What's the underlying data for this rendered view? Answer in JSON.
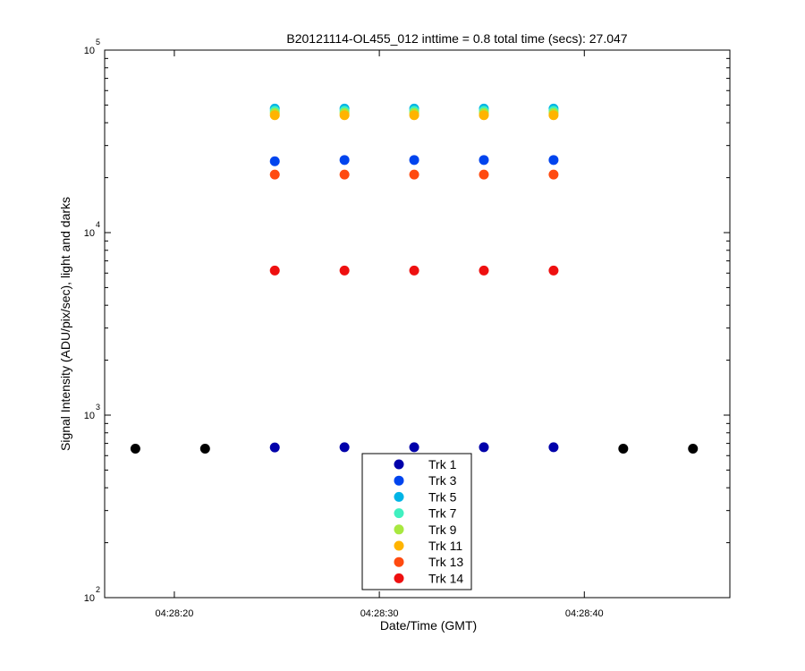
{
  "chart_data": {
    "type": "scatter",
    "title": "B20121114-OL455_012 inttime = 0.8 total time (secs): 27.047",
    "xlabel": "Date/Time (GMT)",
    "ylabel": "Signal Intensity (ADU/pix/sec), light and darks",
    "y_scale": "log",
    "ylim": [
      100,
      100000
    ],
    "xlim": [
      "04:28:16.6",
      "04:28:47.1"
    ],
    "x_ticks": [
      "04:28:20",
      "04:28:30",
      "04:28:40"
    ],
    "y_ticks": [
      {
        "base": "10",
        "exp": "2",
        "value": 100
      },
      {
        "base": "10",
        "exp": "3",
        "value": 1000
      },
      {
        "base": "10",
        "exp": "4",
        "value": 10000
      },
      {
        "base": "10",
        "exp": "5",
        "value": 100000
      }
    ],
    "x_times": [
      "04:28:24.9",
      "04:28:28.3",
      "04:28:31.7",
      "04:28:35.1",
      "04:28:38.5"
    ],
    "series": [
      {
        "name": "Trk 1",
        "color": "#0000aa",
        "values": [
          665,
          667,
          667,
          667,
          667
        ]
      },
      {
        "name": "Trk 3",
        "color": "#0044ee",
        "values": [
          24600,
          25000,
          25000,
          25000,
          25000
        ]
      },
      {
        "name": "Trk 5",
        "color": "#00b4e6",
        "values": [
          47800,
          47800,
          47800,
          47800,
          47800
        ]
      },
      {
        "name": "Trk 7",
        "color": "#40f0c0",
        "values": [
          46500,
          46500,
          46500,
          46500,
          46500
        ]
      },
      {
        "name": "Trk 9",
        "color": "#a8e840",
        "values": [
          45200,
          45200,
          45200,
          45200,
          45200
        ]
      },
      {
        "name": "Trk 11",
        "color": "#ffb400",
        "values": [
          44000,
          44000,
          44000,
          44000,
          44000
        ]
      },
      {
        "name": "Trk 13",
        "color": "#ff4a10",
        "values": [
          20800,
          20800,
          20800,
          20800,
          20800
        ]
      },
      {
        "name": "Trk 14",
        "color": "#ee1010",
        "values": [
          6200,
          6200,
          6200,
          6200,
          6200
        ]
      }
    ],
    "darks": {
      "color": "#000000",
      "x_times": [
        "04:28:18.1",
        "04:28:21.5",
        "04:28:41.9",
        "04:28:45.3"
      ],
      "values": [
        655,
        655,
        655,
        655
      ]
    },
    "legend_position": "bottom-center",
    "grid": false
  }
}
